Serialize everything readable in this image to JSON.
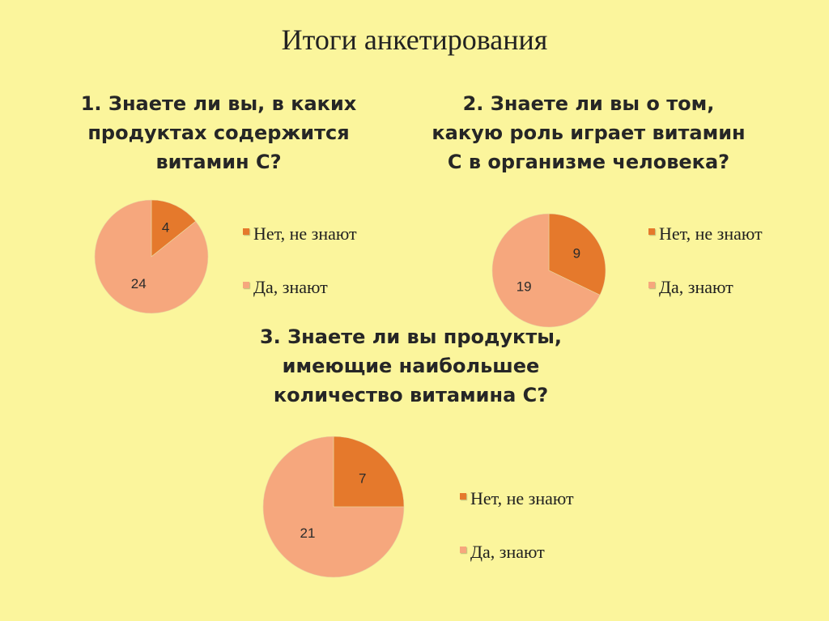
{
  "title": "Итоги анкетирования",
  "colors": {
    "background": "#fbf59c",
    "no": "#e5792c",
    "yes": "#f6a77d"
  },
  "chart_data": [
    {
      "type": "pie",
      "title": "1. Знаете ли вы, в каких продуктах содержится витамин С?",
      "labels": [
        "Нет, не знают",
        "Да, знают"
      ],
      "values": [
        4,
        24
      ],
      "legend": "right"
    },
    {
      "type": "pie",
      "title": "2. Знаете ли вы о том, какую роль играет витамин С в организме человека?",
      "labels": [
        "Нет, не знают",
        "Да, знают"
      ],
      "values": [
        9,
        19
      ],
      "legend": "right"
    },
    {
      "type": "pie",
      "title": "3. Знаете ли вы продукты, имеющие наибольшее количество витамина С?",
      "labels": [
        "Нет, не знают",
        "Да, знают"
      ],
      "values": [
        7,
        21
      ],
      "legend": "right"
    }
  ]
}
